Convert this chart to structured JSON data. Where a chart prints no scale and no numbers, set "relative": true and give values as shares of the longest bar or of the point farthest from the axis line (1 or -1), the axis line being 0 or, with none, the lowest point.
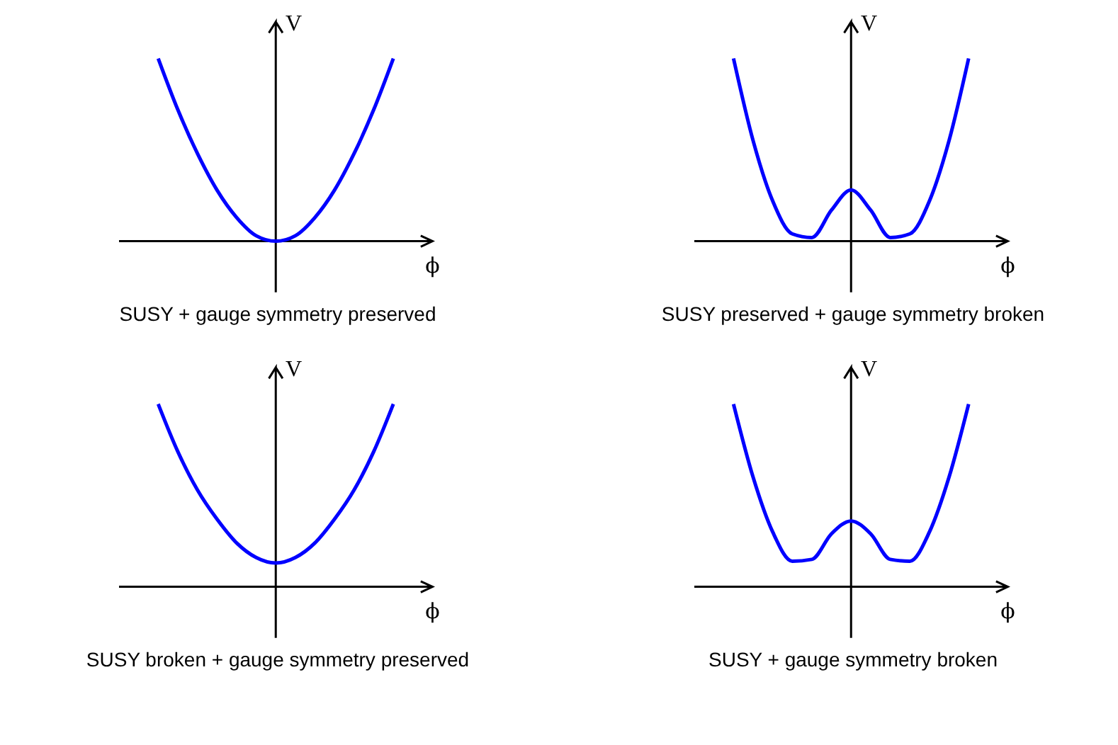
{
  "chart_data": [
    {
      "type": "line",
      "relative": true,
      "title": "SUSY + gauge symmetry preserved",
      "xlabel": "ϕ",
      "ylabel": "V",
      "categories": [
        null,
        null,
        null,
        null,
        null,
        null,
        null,
        null,
        null,
        null,
        null,
        null,
        null
      ],
      "series": [
        {
          "color": "#0000ff",
          "values": [
            1.0,
            0.72,
            0.48,
            0.28,
            0.13,
            0.03,
            0,
            0.03,
            0.13,
            0.28,
            0.48,
            0.72,
            1.0
          ]
        }
      ]
    },
    {
      "type": "line",
      "relative": true,
      "title": "SUSY preserved + gauge symmetry broken",
      "xlabel": "ϕ",
      "ylabel": "V",
      "categories": [
        null,
        null,
        null,
        null,
        null,
        null,
        null,
        null,
        null,
        null,
        null,
        null,
        null
      ],
      "series": [
        {
          "color": "#0000ff",
          "values": [
            1.0,
            0.55,
            0.22,
            0.04,
            0.02,
            0.17,
            0.28,
            0.17,
            0.02,
            0.04,
            0.22,
            0.55,
            1.0
          ]
        }
      ]
    },
    {
      "type": "line",
      "relative": true,
      "title": "SUSY broken + gauge symmetry preserved",
      "xlabel": "ϕ",
      "ylabel": "V",
      "categories": [
        null,
        null,
        null,
        null,
        null,
        null,
        null,
        null,
        null,
        null,
        null,
        null,
        null
      ],
      "series": [
        {
          "color": "#0000ff",
          "values": [
            1.0,
            0.74,
            0.53,
            0.37,
            0.24,
            0.16,
            0.13,
            0.16,
            0.24,
            0.37,
            0.53,
            0.74,
            1.0
          ]
        }
      ]
    },
    {
      "type": "line",
      "relative": true,
      "title": "SUSY + gauge symmetry broken",
      "xlabel": "ϕ",
      "ylabel": "V",
      "categories": [
        null,
        null,
        null,
        null,
        null,
        null,
        null,
        null,
        null,
        null,
        null,
        null,
        null
      ],
      "series": [
        {
          "color": "#0000ff",
          "values": [
            1.0,
            0.6,
            0.3,
            0.14,
            0.15,
            0.29,
            0.36,
            0.29,
            0.15,
            0.14,
            0.3,
            0.6,
            1.0
          ]
        }
      ]
    }
  ]
}
